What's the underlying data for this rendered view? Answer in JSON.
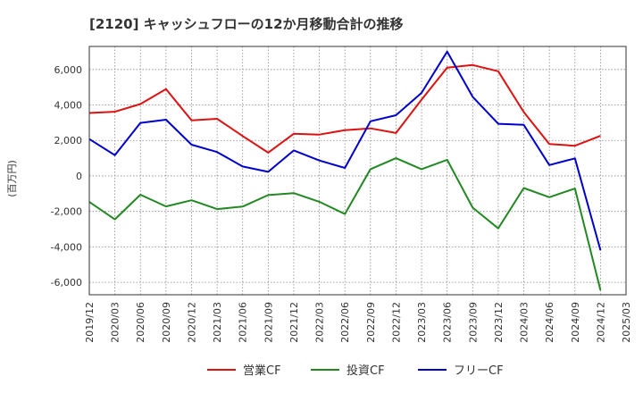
{
  "chart_data": {
    "type": "line",
    "title": "[2120]  キャッシュフローの12か月移動合計の推移",
    "ylabel": "(百万円)",
    "xlabel": "",
    "ylim": [
      -6700,
      7300
    ],
    "yticks": [
      -6000,
      -4000,
      -2000,
      0,
      2000,
      4000,
      6000
    ],
    "ytick_labels": [
      "-6,000",
      "-4,000",
      "-2,000",
      "0",
      "2,000",
      "4,000",
      "6,000"
    ],
    "grid": true,
    "legend_position": "bottom",
    "x": [
      "2019/12",
      "2020/03",
      "2020/06",
      "2020/09",
      "2020/12",
      "2021/03",
      "2021/06",
      "2021/09",
      "2021/12",
      "2022/03",
      "2022/06",
      "2022/09",
      "2022/12",
      "2023/03",
      "2023/06",
      "2023/09",
      "2023/12",
      "2024/03",
      "2024/06",
      "2024/09",
      "2024/12",
      "2025/03"
    ],
    "series": [
      {
        "name": "営業CF",
        "color": "#dd1111",
        "values": [
          3550,
          3620,
          4050,
          4900,
          3130,
          3220,
          2250,
          1310,
          2380,
          2330,
          2580,
          2680,
          2420,
          4300,
          6100,
          6250,
          5900,
          3600,
          1800,
          1700,
          2260,
          null
        ]
      },
      {
        "name": "投資CF",
        "color": "#228822",
        "values": [
          -1470,
          -2450,
          -1060,
          -1720,
          -1370,
          -1870,
          -1730,
          -1080,
          -970,
          -1460,
          -2150,
          380,
          1000,
          380,
          910,
          -1790,
          -2960,
          -680,
          -1200,
          -710,
          -6450,
          null
        ]
      },
      {
        "name": "フリーCF",
        "color": "#0000cc",
        "values": [
          2080,
          1170,
          2990,
          3170,
          1760,
          1350,
          530,
          230,
          1440,
          870,
          450,
          3080,
          3420,
          4680,
          7010,
          4460,
          2940,
          2880,
          610,
          990,
          -4190,
          null
        ]
      }
    ]
  }
}
